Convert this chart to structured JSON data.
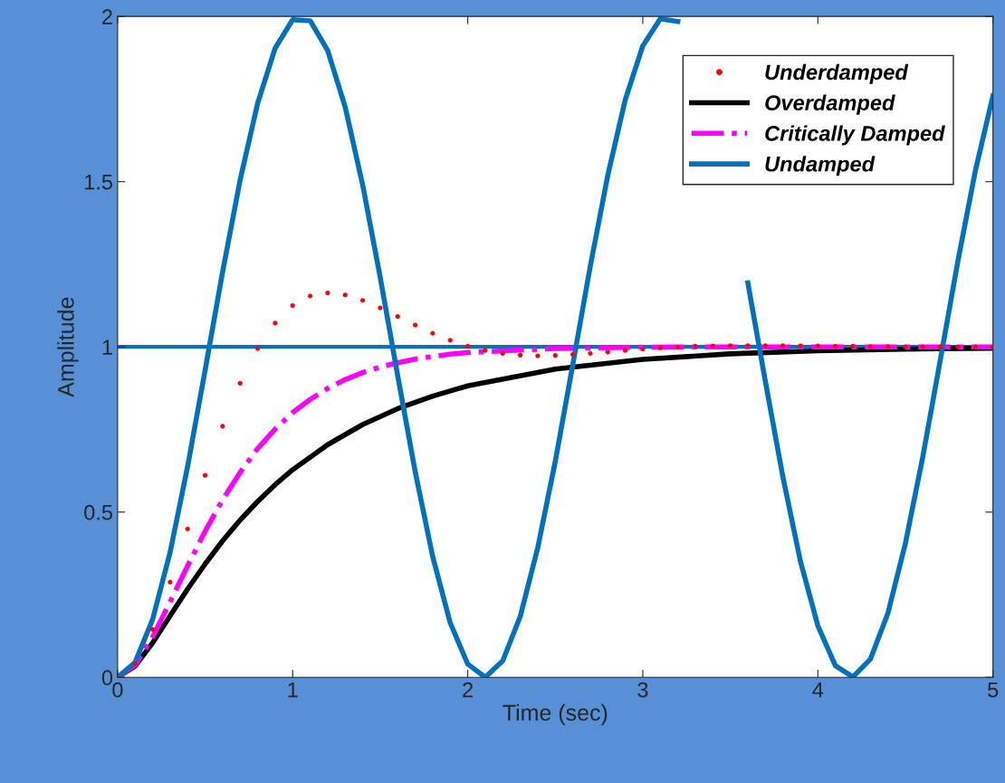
{
  "chart_data": {
    "type": "line",
    "xlabel": "Time (sec)",
    "ylabel": "Amplitude",
    "xlim": [
      0,
      5
    ],
    "ylim": [
      0,
      2
    ],
    "xticks": [
      0,
      1,
      2,
      3,
      4,
      5
    ],
    "yticks": [
      0,
      0.5,
      1,
      1.5,
      2
    ],
    "grid": false,
    "legend": "top right",
    "series": [
      {
        "name": "Underdamped",
        "type": "scatter",
        "marker": "circle",
        "color": "#ff0000",
        "x": [
          0,
          0.1,
          0.2,
          0.3,
          0.4,
          0.5,
          0.6,
          0.7,
          0.8,
          0.9,
          1.0,
          1.1,
          1.2,
          1.3,
          1.4,
          1.5,
          1.6,
          1.7,
          1.8,
          1.9,
          2.0,
          2.1,
          2.2,
          2.3,
          2.4,
          2.5,
          2.6,
          2.7,
          2.8,
          2.9,
          3.0,
          3.1,
          3.2,
          3.3,
          3.4,
          3.5,
          3.6,
          3.7,
          3.8,
          3.9,
          4.0,
          4.1,
          4.2,
          4.3,
          4.4,
          4.5,
          4.6,
          4.7,
          4.8,
          4.9,
          5.0
        ],
        "values": [
          0,
          0.041,
          0.145,
          0.288,
          0.449,
          0.611,
          0.76,
          0.89,
          0.995,
          1.072,
          1.125,
          1.154,
          1.163,
          1.157,
          1.141,
          1.118,
          1.092,
          1.066,
          1.041,
          1.02,
          1.002,
          0.989,
          0.98,
          0.975,
          0.973,
          0.974,
          0.977,
          0.98,
          0.984,
          0.989,
          0.993,
          0.997,
          0.999,
          1.002,
          1.003,
          1.004,
          1.004,
          1.004,
          1.004,
          1.003,
          1.003,
          1.002,
          1.002,
          1.001,
          1.001,
          1.0,
          1.0,
          1.0,
          1.0,
          1.0,
          1.0
        ]
      },
      {
        "name": "Overdamped",
        "line_style": "solid",
        "color": "#000000",
        "x": [
          0,
          0.1,
          0.2,
          0.3,
          0.4,
          0.5,
          0.6,
          0.7,
          0.8,
          0.9,
          1.0,
          1.2,
          1.4,
          1.6,
          1.8,
          2.0,
          2.5,
          3.0,
          3.5,
          4.0,
          4.5,
          5.0
        ],
        "values": [
          0,
          0.034,
          0.104,
          0.186,
          0.267,
          0.343,
          0.413,
          0.476,
          0.532,
          0.583,
          0.628,
          0.704,
          0.765,
          0.813,
          0.851,
          0.882,
          0.933,
          0.962,
          0.979,
          0.988,
          0.993,
          0.996
        ]
      },
      {
        "name": "Critically Damped",
        "line_style": "dashdot",
        "color": "#ff00ff",
        "x": [
          0,
          0.1,
          0.2,
          0.3,
          0.4,
          0.5,
          0.6,
          0.7,
          0.8,
          0.9,
          1.0,
          1.1,
          1.2,
          1.3,
          1.4,
          1.5,
          1.6,
          1.7,
          1.8,
          1.9,
          2.0,
          2.5,
          3.0,
          3.5,
          4.0,
          4.5,
          5.0
        ],
        "values": [
          0,
          0.037,
          0.122,
          0.228,
          0.337,
          0.442,
          0.537,
          0.62,
          0.692,
          0.751,
          0.801,
          0.841,
          0.874,
          0.901,
          0.922,
          0.939,
          0.952,
          0.963,
          0.971,
          0.978,
          0.983,
          0.995,
          0.999,
          1.0,
          1.0,
          1.0,
          1.0
        ]
      },
      {
        "name": "Undamped",
        "line_style": "solid",
        "color": "#0072bd",
        "x": [
          0,
          0.1,
          0.2,
          0.3,
          0.4,
          0.5,
          0.6,
          0.7,
          0.8,
          0.9,
          1.0,
          1.1,
          1.2,
          1.3,
          1.4,
          1.5,
          1.6,
          1.7,
          1.8,
          1.9,
          2.0,
          2.1,
          2.2,
          2.3,
          2.4,
          2.5,
          2.6,
          2.7,
          2.8,
          2.9,
          3.0,
          3.1,
          3.2,
          3.3,
          3.4,
          3.5,
          3.6,
          3.7,
          3.8,
          3.9,
          4.0,
          4.1,
          4.2,
          4.3,
          4.4,
          4.5,
          4.6,
          4.7,
          4.8,
          4.9,
          5.0
        ],
        "values": [
          0,
          0.045,
          0.175,
          0.378,
          0.638,
          0.929,
          1.227,
          1.505,
          1.737,
          1.904,
          1.99,
          1.987,
          1.897,
          1.726,
          1.49,
          1.211,
          0.913,
          0.622,
          0.365,
          0.165,
          0.04,
          0.0,
          0.05,
          0.184,
          0.392,
          0.653,
          0.946,
          1.244,
          1.519,
          1.748,
          1.911,
          1.993,
          1.985,
          null,
          null,
          null,
          1.194,
          0.896,
          0.607,
          0.352,
          0.156,
          0.035,
          0.001,
          0.055,
          0.194,
          0.405,
          0.669,
          0.962,
          1.26,
          1.534,
          1.76
        ]
      }
    ],
    "ref_lines": [
      {
        "axis": "y",
        "value": 1,
        "color": "#0072bd",
        "line_style": "solid"
      }
    ]
  }
}
